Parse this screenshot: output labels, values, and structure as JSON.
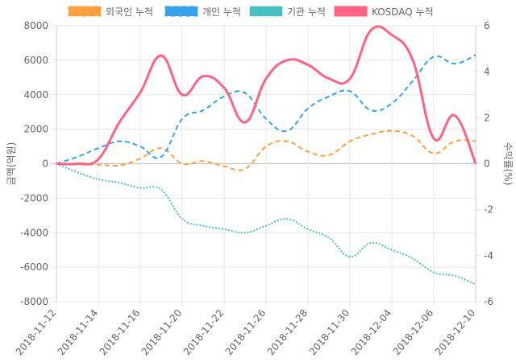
{
  "chart_data": {
    "type": "line",
    "x": [
      "2018-11-12",
      "2018-11-13",
      "2018-11-14",
      "2018-11-15",
      "2018-11-16",
      "2018-11-19",
      "2018-11-20",
      "2018-11-21",
      "2018-11-22",
      "2018-11-23",
      "2018-11-26",
      "2018-11-27",
      "2018-11-28",
      "2018-11-29",
      "2018-11-30",
      "2018-12-03",
      "2018-12-04",
      "2018-12-05",
      "2018-12-06",
      "2018-12-07",
      "2018-12-10"
    ],
    "x_tick_labels": [
      "2018-11-12",
      "2018-11-14",
      "2018-11-16",
      "2018-11-20",
      "2018-11-22",
      "2018-11-26",
      "2018-11-28",
      "2018-11-30",
      "2018-12-04",
      "2018-12-06",
      "2018-12-10"
    ],
    "ylabel": "금액(억원)",
    "y2label": "수익률(%)",
    "ylim": [
      -8000,
      8000
    ],
    "y2lim": [
      -6,
      6
    ],
    "yticks": [
      "8000",
      "6000",
      "4000",
      "2000",
      "0",
      "-2000",
      "-4000",
      "-6000",
      "-8000"
    ],
    "y2ticks": [
      "6",
      "4",
      "2",
      "0",
      "-2",
      "-4",
      "-6"
    ],
    "grid": true,
    "legend": "top",
    "series": [
      {
        "name": "외국인 누적",
        "axis": "left",
        "style": "dashed",
        "color": "#FF9F40",
        "values": [
          0,
          -50,
          -50,
          -100,
          300,
          900,
          0,
          150,
          -150,
          -300,
          1000,
          1300,
          700,
          500,
          1300,
          1700,
          1900,
          1600,
          600,
          1300,
          1300
        ]
      },
      {
        "name": "개인 누적",
        "axis": "left",
        "style": "dashed",
        "color": "#36A2EB",
        "values": [
          0,
          400,
          900,
          1300,
          1000,
          400,
          2600,
          3100,
          3900,
          4100,
          2600,
          1900,
          3200,
          3900,
          4200,
          3100,
          3500,
          4800,
          6200,
          5800,
          6300
        ]
      },
      {
        "name": "기관 누적",
        "axis": "left",
        "style": "dotted",
        "color": "#4BC0C0",
        "values": [
          0,
          -500,
          -900,
          -1100,
          -1400,
          -1500,
          -3200,
          -3600,
          -3800,
          -4000,
          -3600,
          -3200,
          -3800,
          -4300,
          -5400,
          -4600,
          -5000,
          -5500,
          -6300,
          -6500,
          -7000
        ]
      },
      {
        "name": "KOSDAQ 누적",
        "axis": "right",
        "style": "solid",
        "color": "#FF6384",
        "values": [
          0,
          0,
          0.2,
          1.8,
          3.1,
          4.7,
          3.0,
          3.8,
          3.3,
          1.8,
          3.7,
          4.5,
          4.3,
          3.7,
          3.7,
          5.8,
          5.6,
          4.5,
          1.1,
          2.1,
          0
        ]
      }
    ]
  }
}
